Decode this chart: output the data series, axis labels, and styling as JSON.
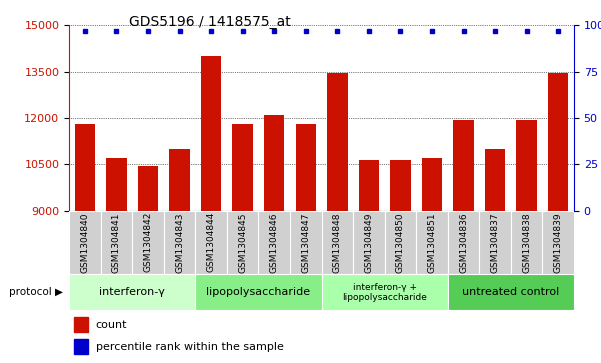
{
  "title": "GDS5196 / 1418575_at",
  "samples": [
    "GSM1304840",
    "GSM1304841",
    "GSM1304842",
    "GSM1304843",
    "GSM1304844",
    "GSM1304845",
    "GSM1304846",
    "GSM1304847",
    "GSM1304848",
    "GSM1304849",
    "GSM1304850",
    "GSM1304851",
    "GSM1304836",
    "GSM1304837",
    "GSM1304838",
    "GSM1304839"
  ],
  "counts": [
    11800,
    10700,
    10450,
    11000,
    14000,
    11800,
    12100,
    11800,
    13450,
    10650,
    10650,
    10700,
    11950,
    11000,
    11950,
    13450
  ],
  "ylim_left": [
    9000,
    15000
  ],
  "ylim_right": [
    0,
    100
  ],
  "yticks_left": [
    9000,
    10500,
    12000,
    13500,
    15000
  ],
  "yticks_right": [
    0,
    25,
    50,
    75,
    100
  ],
  "bar_color": "#cc1100",
  "dot_color": "#0000cc",
  "dot_value": 14820,
  "protocols": [
    {
      "label": "interferon-γ",
      "start": 0,
      "end": 4,
      "color": "#ccffcc"
    },
    {
      "label": "lipopolysaccharide",
      "start": 4,
      "end": 8,
      "color": "#88ee88"
    },
    {
      "label": "interferon-γ +\nlipopolysaccharide",
      "start": 8,
      "end": 12,
      "color": "#aaffaa"
    },
    {
      "label": "untreated control",
      "start": 12,
      "end": 16,
      "color": "#55cc55"
    }
  ],
  "legend_count_label": "count",
  "legend_percentile_label": "percentile rank within the sample",
  "background_color": "#ffffff",
  "title_fontsize": 10,
  "label_fontsize": 6.5,
  "bar_width": 0.65,
  "sample_box_color": "#d0d0d0",
  "protocol_label_fontsize": 8,
  "protocol_label_small_fontsize": 6.5
}
